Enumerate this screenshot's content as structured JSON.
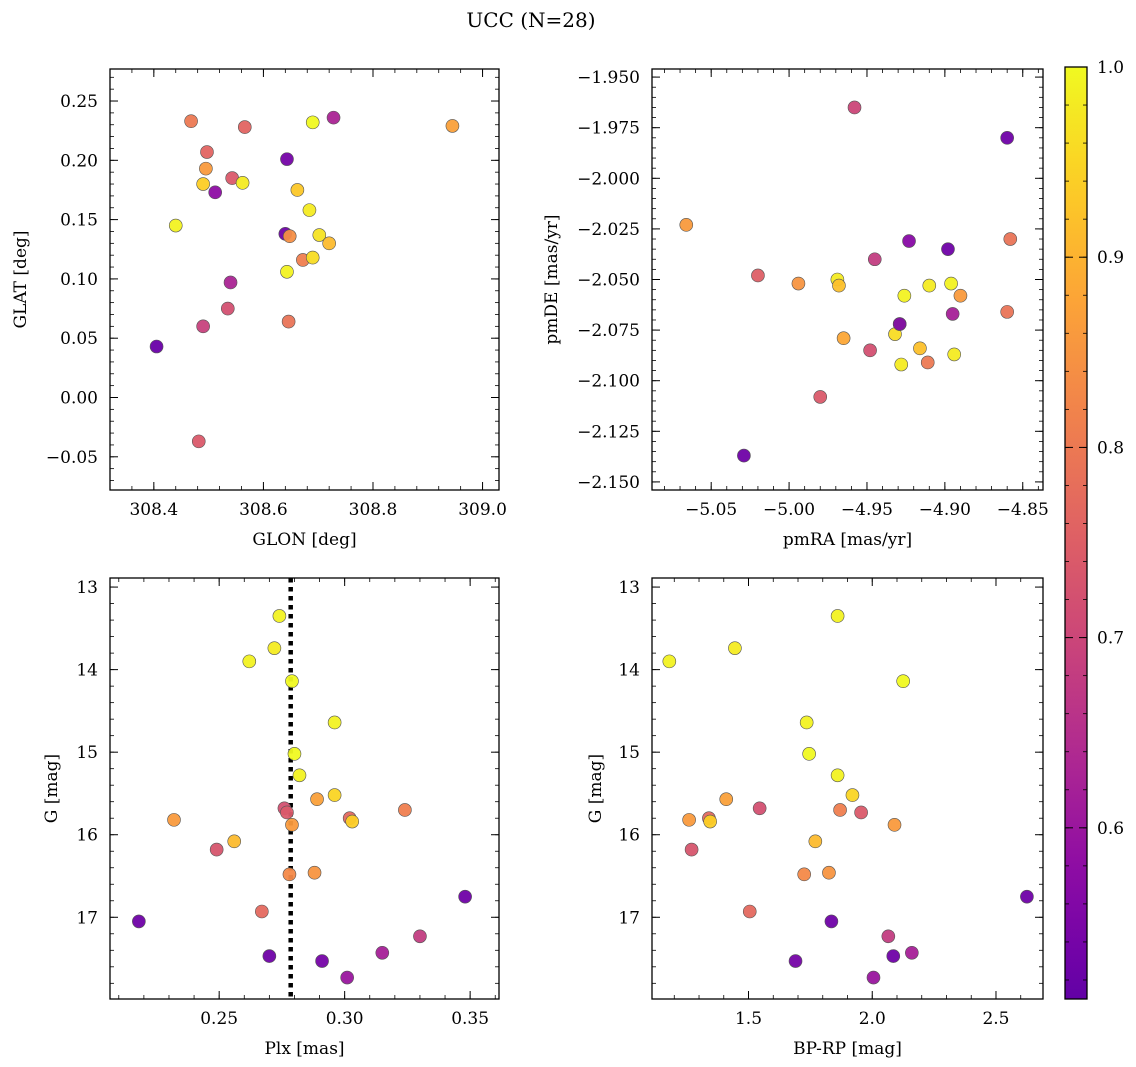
{
  "figure": {
    "title": "UCC (N=28)"
  },
  "colorbar": {
    "cmap": "plasma",
    "vmin": 0.51,
    "vmax": 1.0,
    "ticks": [
      0.6,
      0.7,
      0.8,
      0.9,
      1.0
    ],
    "tick_labels": [
      "0.6",
      "0.7",
      "0.8",
      "0.9",
      "1.0"
    ]
  },
  "chart_data": [
    {
      "type": "scatter",
      "id": "glon-glat",
      "xlabel": "GLON [deg]",
      "ylabel": "GLAT [deg]",
      "xlim": [
        308.32,
        309.03
      ],
      "ylim": [
        -0.078,
        0.277
      ],
      "xticks": [
        308.4,
        308.6,
        308.8,
        309.0
      ],
      "xtick_labels": [
        "308.4",
        "308.6",
        "308.8",
        "309.0"
      ],
      "yticks": [
        -0.05,
        0.0,
        0.05,
        0.1,
        0.15,
        0.2,
        0.25
      ],
      "ytick_labels": [
        "−0.05",
        "0.00",
        "0.05",
        "0.10",
        "0.15",
        "0.20",
        "0.25"
      ],
      "x_minor": 0.04,
      "y_minor": 0.01,
      "points": [
        {
          "x": 308.405,
          "y": 0.043,
          "c": 0.52
        },
        {
          "x": 308.44,
          "y": 0.145,
          "c": 0.99
        },
        {
          "x": 308.468,
          "y": 0.233,
          "c": 0.8
        },
        {
          "x": 308.482,
          "y": -0.037,
          "c": 0.74
        },
        {
          "x": 308.49,
          "y": 0.06,
          "c": 0.69
        },
        {
          "x": 308.49,
          "y": 0.18,
          "c": 0.94
        },
        {
          "x": 308.495,
          "y": 0.193,
          "c": 0.86
        },
        {
          "x": 308.497,
          "y": 0.207,
          "c": 0.76
        },
        {
          "x": 308.512,
          "y": 0.173,
          "c": 0.58
        },
        {
          "x": 308.535,
          "y": 0.075,
          "c": 0.72
        },
        {
          "x": 308.54,
          "y": 0.097,
          "c": 0.63
        },
        {
          "x": 308.543,
          "y": 0.185,
          "c": 0.74
        },
        {
          "x": 308.562,
          "y": 0.181,
          "c": 0.98
        },
        {
          "x": 308.566,
          "y": 0.228,
          "c": 0.76
        },
        {
          "x": 308.64,
          "y": 0.138,
          "c": 0.53
        },
        {
          "x": 308.643,
          "y": 0.106,
          "c": 0.99
        },
        {
          "x": 308.643,
          "y": 0.201,
          "c": 0.54
        },
        {
          "x": 308.646,
          "y": 0.064,
          "c": 0.79
        },
        {
          "x": 308.648,
          "y": 0.136,
          "c": 0.84
        },
        {
          "x": 308.662,
          "y": 0.175,
          "c": 0.93
        },
        {
          "x": 308.672,
          "y": 0.116,
          "c": 0.81
        },
        {
          "x": 308.684,
          "y": 0.158,
          "c": 0.98
        },
        {
          "x": 308.69,
          "y": 0.118,
          "c": 0.96
        },
        {
          "x": 308.69,
          "y": 0.232,
          "c": 1.0
        },
        {
          "x": 308.702,
          "y": 0.137,
          "c": 0.97
        },
        {
          "x": 308.72,
          "y": 0.13,
          "c": 0.91
        },
        {
          "x": 308.728,
          "y": 0.236,
          "c": 0.63
        },
        {
          "x": 308.945,
          "y": 0.229,
          "c": 0.87
        }
      ]
    },
    {
      "type": "scatter",
      "id": "pmra-pmde",
      "xlabel": "pmRA [mas/yr]",
      "ylabel": "pmDE [mas/yr]",
      "xlim": [
        -5.088,
        -4.837
      ],
      "ylim": [
        -2.154,
        -1.946
      ],
      "xticks": [
        -5.05,
        -5.0,
        -4.95,
        -4.9,
        -4.85
      ],
      "xtick_labels": [
        "−5.05",
        "−5.00",
        "−4.95",
        "−4.90",
        "−4.85"
      ],
      "yticks": [
        -2.15,
        -2.125,
        -2.1,
        -2.075,
        -2.05,
        -2.025,
        -2.0,
        -1.975,
        -1.95
      ],
      "ytick_labels": [
        "−2.150",
        "−2.125",
        "−2.100",
        "−2.075",
        "−2.050",
        "−2.025",
        "−2.000",
        "−1.975",
        "−1.950"
      ],
      "x_minor": 0.01,
      "y_minor": 0.005,
      "points": [
        {
          "x": -5.066,
          "y": -2.023,
          "c": 0.86
        },
        {
          "x": -5.029,
          "y": -2.137,
          "c": 0.53
        },
        {
          "x": -5.02,
          "y": -2.048,
          "c": 0.75
        },
        {
          "x": -4.994,
          "y": -2.052,
          "c": 0.85
        },
        {
          "x": -4.98,
          "y": -2.108,
          "c": 0.74
        },
        {
          "x": -4.969,
          "y": -2.05,
          "c": 0.98
        },
        {
          "x": -4.968,
          "y": -2.053,
          "c": 0.92
        },
        {
          "x": -4.965,
          "y": -2.079,
          "c": 0.88
        },
        {
          "x": -4.958,
          "y": -1.965,
          "c": 0.7
        },
        {
          "x": -4.948,
          "y": -2.085,
          "c": 0.72
        },
        {
          "x": -4.945,
          "y": -2.04,
          "c": 0.68
        },
        {
          "x": -4.932,
          "y": -2.077,
          "c": 0.96
        },
        {
          "x": -4.929,
          "y": -2.072,
          "c": 0.99
        },
        {
          "x": -4.929,
          "y": -2.072,
          "c": 0.55
        },
        {
          "x": -4.928,
          "y": -2.092,
          "c": 0.98
        },
        {
          "x": -4.926,
          "y": -2.058,
          "c": 0.99
        },
        {
          "x": -4.923,
          "y": -2.031,
          "c": 0.57
        },
        {
          "x": -4.916,
          "y": -2.084,
          "c": 0.92
        },
        {
          "x": -4.911,
          "y": -2.091,
          "c": 0.8
        },
        {
          "x": -4.91,
          "y": -2.053,
          "c": 0.98
        },
        {
          "x": -4.898,
          "y": -2.035,
          "c": 0.53
        },
        {
          "x": -4.896,
          "y": -2.052,
          "c": 0.99
        },
        {
          "x": -4.895,
          "y": -2.067,
          "c": 0.62
        },
        {
          "x": -4.894,
          "y": -2.087,
          "c": 0.98
        },
        {
          "x": -4.89,
          "y": -2.058,
          "c": 0.86
        },
        {
          "x": -4.86,
          "y": -2.066,
          "c": 0.79
        },
        {
          "x": -4.86,
          "y": -1.98,
          "c": 0.53
        },
        {
          "x": -4.858,
          "y": -2.03,
          "c": 0.79
        }
      ]
    },
    {
      "type": "scatter",
      "id": "plx-g",
      "xlabel": "Plx [mas]",
      "ylabel": "G [mag]",
      "xlim": [
        0.2065,
        0.3615
      ],
      "ylim": [
        17.99,
        12.89
      ],
      "y_inverted": true,
      "xticks": [
        0.25,
        0.3,
        0.35
      ],
      "xtick_labels": [
        "0.25",
        "0.30",
        "0.35"
      ],
      "yticks": [
        13,
        14,
        15,
        16,
        17
      ],
      "ytick_labels": [
        "13",
        "14",
        "15",
        "16",
        "17"
      ],
      "x_minor": 0.01,
      "y_minor": 0.2,
      "vline": {
        "x": 0.2785,
        "style": "dotted"
      },
      "points": [
        {
          "x": 0.218,
          "y": 17.05,
          "c": 0.53
        },
        {
          "x": 0.232,
          "y": 15.82,
          "c": 0.86
        },
        {
          "x": 0.249,
          "y": 16.18,
          "c": 0.73
        },
        {
          "x": 0.256,
          "y": 16.08,
          "c": 0.91
        },
        {
          "x": 0.262,
          "y": 13.9,
          "c": 0.99
        },
        {
          "x": 0.267,
          "y": 16.93,
          "c": 0.77
        },
        {
          "x": 0.27,
          "y": 17.47,
          "c": 0.53
        },
        {
          "x": 0.272,
          "y": 13.74,
          "c": 0.98
        },
        {
          "x": 0.274,
          "y": 13.35,
          "c": 0.99
        },
        {
          "x": 0.276,
          "y": 15.68,
          "c": 0.72
        },
        {
          "x": 0.277,
          "y": 15.73,
          "c": 0.74
        },
        {
          "x": 0.278,
          "y": 16.48,
          "c": 0.83
        },
        {
          "x": 0.279,
          "y": 14.14,
          "c": 1.0
        },
        {
          "x": 0.279,
          "y": 15.88,
          "c": 0.86
        },
        {
          "x": 0.28,
          "y": 15.02,
          "c": 1.0
        },
        {
          "x": 0.282,
          "y": 15.28,
          "c": 0.99
        },
        {
          "x": 0.288,
          "y": 16.46,
          "c": 0.85
        },
        {
          "x": 0.289,
          "y": 15.57,
          "c": 0.87
        },
        {
          "x": 0.291,
          "y": 17.53,
          "c": 0.54
        },
        {
          "x": 0.296,
          "y": 14.64,
          "c": 0.99
        },
        {
          "x": 0.296,
          "y": 15.52,
          "c": 0.95
        },
        {
          "x": 0.301,
          "y": 17.73,
          "c": 0.6
        },
        {
          "x": 0.302,
          "y": 15.8,
          "c": 0.77
        },
        {
          "x": 0.303,
          "y": 15.84,
          "c": 0.94
        },
        {
          "x": 0.315,
          "y": 17.43,
          "c": 0.62
        },
        {
          "x": 0.324,
          "y": 15.7,
          "c": 0.81
        },
        {
          "x": 0.33,
          "y": 17.23,
          "c": 0.68
        },
        {
          "x": 0.348,
          "y": 16.75,
          "c": 0.53
        }
      ]
    },
    {
      "type": "scatter",
      "id": "bprp-g",
      "xlabel": "BP-RP [mag]",
      "ylabel": "G [mag]",
      "xlim": [
        1.11,
        2.69
      ],
      "ylim": [
        17.99,
        12.89
      ],
      "y_inverted": true,
      "xticks": [
        1.5,
        2.0,
        2.5
      ],
      "xtick_labels": [
        "1.5",
        "2.0",
        "2.5"
      ],
      "yticks": [
        13,
        14,
        15,
        16,
        17
      ],
      "ytick_labels": [
        "13",
        "14",
        "15",
        "16",
        "17"
      ],
      "x_minor": 0.1,
      "y_minor": 0.2,
      "points": [
        {
          "x": 1.18,
          "y": 13.9,
          "c": 0.99
        },
        {
          "x": 1.26,
          "y": 15.82,
          "c": 0.86
        },
        {
          "x": 1.27,
          "y": 16.18,
          "c": 0.73
        },
        {
          "x": 1.34,
          "y": 15.8,
          "c": 0.77
        },
        {
          "x": 1.345,
          "y": 15.84,
          "c": 0.94
        },
        {
          "x": 1.41,
          "y": 15.57,
          "c": 0.87
        },
        {
          "x": 1.445,
          "y": 13.74,
          "c": 0.98
        },
        {
          "x": 1.505,
          "y": 16.93,
          "c": 0.77
        },
        {
          "x": 1.545,
          "y": 15.68,
          "c": 0.72
        },
        {
          "x": 1.69,
          "y": 17.53,
          "c": 0.54
        },
        {
          "x": 1.725,
          "y": 16.48,
          "c": 0.83
        },
        {
          "x": 1.735,
          "y": 14.64,
          "c": 0.99
        },
        {
          "x": 1.745,
          "y": 15.02,
          "c": 1.0
        },
        {
          "x": 1.77,
          "y": 16.08,
          "c": 0.91
        },
        {
          "x": 1.825,
          "y": 16.46,
          "c": 0.85
        },
        {
          "x": 1.835,
          "y": 17.05,
          "c": 0.53
        },
        {
          "x": 1.86,
          "y": 13.35,
          "c": 0.99
        },
        {
          "x": 1.86,
          "y": 15.28,
          "c": 0.99
        },
        {
          "x": 1.87,
          "y": 15.7,
          "c": 0.81
        },
        {
          "x": 1.92,
          "y": 15.52,
          "c": 0.95
        },
        {
          "x": 1.955,
          "y": 15.73,
          "c": 0.74
        },
        {
          "x": 2.005,
          "y": 17.73,
          "c": 0.6
        },
        {
          "x": 2.065,
          "y": 17.23,
          "c": 0.68
        },
        {
          "x": 2.085,
          "y": 17.47,
          "c": 0.53
        },
        {
          "x": 2.09,
          "y": 15.88,
          "c": 0.86
        },
        {
          "x": 2.125,
          "y": 14.14,
          "c": 1.0
        },
        {
          "x": 2.16,
          "y": 17.43,
          "c": 0.62
        },
        {
          "x": 2.625,
          "y": 16.75,
          "c": 0.53
        }
      ]
    }
  ]
}
